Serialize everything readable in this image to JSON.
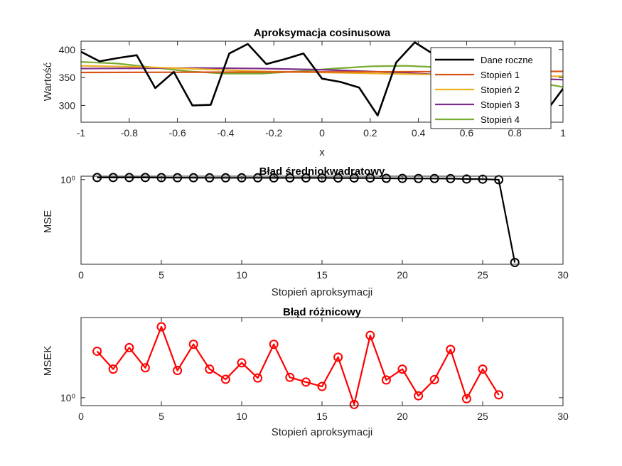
{
  "chart_data": [
    {
      "type": "line",
      "title": "Aproksymacja cosinusowa",
      "xlabel": "x",
      "ylabel": "Wartość",
      "xlim": [
        -1,
        1
      ],
      "ylim": [
        270,
        415
      ],
      "xticks": [
        "-1",
        "-0.8",
        "-0.6",
        "-0.4",
        "-0.2",
        "0",
        "0.2",
        "0.4",
        "0.6",
        "0.8",
        "1"
      ],
      "yticks": [
        "300",
        "350",
        "400"
      ],
      "legend_position": "top-right",
      "series": [
        {
          "name": "Dane roczne",
          "color": "#000000",
          "x": [
            -1,
            -0.923,
            -0.846,
            -0.769,
            -0.692,
            -0.615,
            -0.538,
            -0.462,
            -0.385,
            -0.308,
            -0.231,
            -0.154,
            -0.077,
            0,
            0.077,
            0.154,
            0.231,
            0.308,
            0.385,
            0.462,
            0.538,
            0.615,
            0.692,
            0.769,
            0.846,
            0.923,
            1
          ],
          "y": [
            396,
            379,
            385,
            390,
            331,
            360,
            300,
            301,
            393,
            410,
            374,
            383,
            393,
            348,
            342,
            332,
            282,
            377,
            413,
            392,
            382,
            390,
            365,
            340,
            360,
            285,
            330
          ]
        },
        {
          "name": "Stopień 1",
          "color": "#D95319",
          "x": [
            -1,
            -0.5,
            0,
            0.5,
            1
          ],
          "y": [
            359,
            359.5,
            360,
            360.5,
            361
          ]
        },
        {
          "name": "Stopień 2",
          "color": "#EDB120",
          "x": [
            -1,
            -0.75,
            -0.5,
            -0.25,
            0,
            0.25,
            0.5,
            0.75,
            1
          ],
          "y": [
            371,
            369,
            365,
            361,
            359,
            357,
            355,
            353,
            352
          ]
        },
        {
          "name": "Stopień 3",
          "color": "#7E2F8E",
          "x": [
            -1,
            -0.75,
            -0.5,
            -0.25,
            0,
            0.25,
            0.5,
            0.75,
            1
          ],
          "y": [
            366,
            366.5,
            367,
            366,
            364,
            360,
            355,
            350,
            346
          ]
        },
        {
          "name": "Stopień 4",
          "color": "#77AC30",
          "x": [
            -1,
            -0.85,
            -0.7,
            -0.55,
            -0.4,
            -0.25,
            -0.1,
            0.05,
            0.2,
            0.35,
            0.5,
            0.65,
            0.8,
            1
          ],
          "y": [
            378,
            375,
            368,
            361,
            357,
            357,
            361,
            366,
            370,
            371,
            368,
            360,
            348,
            333
          ]
        }
      ]
    },
    {
      "type": "line",
      "title": "Błąd średniokwadratowy",
      "xlabel": "Stopień aproksymacji",
      "ylabel": "MSE",
      "xlim": [
        0,
        30
      ],
      "yscale": "log",
      "ylim": [
        0.0006,
        1.35
      ],
      "xticks": [
        "0",
        "5",
        "10",
        "15",
        "20",
        "25",
        "30"
      ],
      "yticks": [
        {
          "value": 1,
          "label": "10⁰"
        }
      ],
      "marker": "circle",
      "series": [
        {
          "color": "#000000",
          "x": [
            1,
            2,
            3,
            4,
            5,
            6,
            7,
            8,
            9,
            10,
            11,
            12,
            13,
            14,
            15,
            16,
            17,
            18,
            19,
            20,
            21,
            22,
            23,
            24,
            25,
            26,
            27
          ],
          "y": [
            1.2,
            1.2,
            1.2,
            1.2,
            1.19,
            1.18,
            1.18,
            1.17,
            1.17,
            1.17,
            1.17,
            1.16,
            1.16,
            1.16,
            1.16,
            1.15,
            1.15,
            1.15,
            1.12,
            1.11,
            1.1,
            1.1,
            1.09,
            1.05,
            1.04,
            0.99,
            0.0007
          ]
        }
      ]
    },
    {
      "type": "line",
      "title": "Błąd różnicowy",
      "xlabel": "Stopień aproksymacji",
      "ylabel": "MSEK",
      "xlim": [
        0,
        30
      ],
      "yscale": "log",
      "ylim": [
        0.85,
        5.2
      ],
      "xticks": [
        "0",
        "5",
        "10",
        "15",
        "20",
        "25",
        "30"
      ],
      "yticks": [
        {
          "value": 1,
          "label": "10⁰"
        }
      ],
      "marker": "circle",
      "series": [
        {
          "color": "#FF0000",
          "x": [
            1,
            2,
            3,
            4,
            5,
            6,
            7,
            8,
            9,
            10,
            11,
            12,
            13,
            14,
            15,
            16,
            17,
            18,
            19,
            20,
            21,
            22,
            23,
            24,
            25,
            26
          ],
          "y": [
            2.6,
            1.8,
            2.8,
            1.85,
            4.3,
            1.75,
            3.0,
            1.8,
            1.46,
            2.05,
            1.5,
            3.0,
            1.52,
            1.38,
            1.26,
            2.3,
            0.87,
            3.6,
            1.44,
            1.8,
            1.04,
            1.45,
            2.7,
            0.98,
            1.8,
            1.06
          ]
        }
      ]
    }
  ]
}
